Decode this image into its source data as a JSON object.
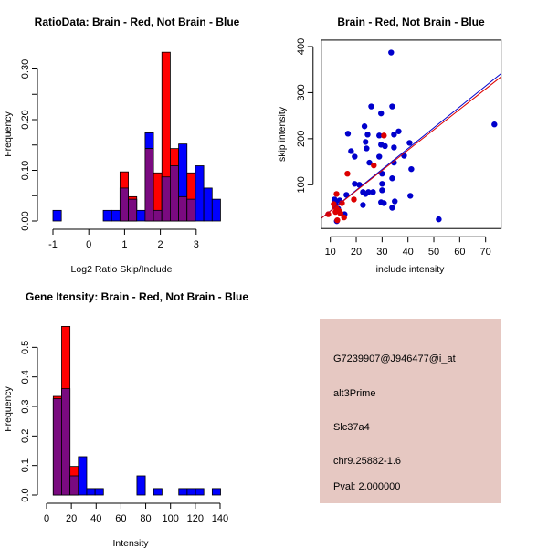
{
  "chart_data": [
    {
      "type": "bar",
      "title": "RatioData: Brain - Red, Not Brain - Blue",
      "xlabel": "Log2 Ratio Skip/Include",
      "ylabel": "Frequency",
      "xlim": [
        -1,
        3.7
      ],
      "ylim": [
        0,
        0.333
      ],
      "xticks": [
        -1,
        0,
        1,
        2,
        3
      ],
      "xtick_labels": [
        "-1",
        "0",
        "1",
        "2",
        "3"
      ],
      "yticks": [
        0,
        0.05,
        0.1,
        0.15,
        0.2,
        0.25,
        0.3
      ],
      "ytick_labels": [
        "0.00",
        "",
        "0.10",
        "",
        "0.20",
        "",
        "0.30"
      ],
      "bin_start": -1,
      "bin_width": 0.234,
      "series": [
        {
          "name": "Not Brain",
          "color": "#0000ff",
          "values": [
            0.021,
            0,
            0,
            0,
            0,
            0,
            0.021,
            0.021,
            0.065,
            0.043,
            0.021,
            0.174,
            0.021,
            0.087,
            0.109,
            0.152,
            0.043,
            0.109,
            0.065,
            0.043
          ]
        },
        {
          "name": "Brain",
          "color": "#ff0000",
          "values": [
            0,
            0,
            0,
            0,
            0,
            0,
            0,
            0,
            0.097,
            0.048,
            0,
            0.143,
            0.095,
            0.333,
            0.143,
            0.048,
            0.095,
            0,
            0,
            0
          ]
        }
      ],
      "overlap_color": "#7a0a80"
    },
    {
      "type": "scatter",
      "title": "Brain - Red, Not Brain - Blue",
      "xlabel": "include intensity",
      "ylabel": "skip intensity",
      "xlim": [
        6.5,
        76
      ],
      "ylim": [
        5,
        414
      ],
      "xticks": [
        10,
        20,
        30,
        40,
        50,
        60,
        70
      ],
      "xtick_labels": [
        "10",
        "20",
        "30",
        "40",
        "50",
        "60",
        "70"
      ],
      "yticks": [
        100,
        200,
        300,
        400
      ],
      "ytick_labels": [
        "100",
        "200",
        "300",
        "400"
      ],
      "series": [
        {
          "name": "Not Brain",
          "color": "#0000cc",
          "points": [
            [
              33.5,
              387
            ],
            [
              25.8,
              270
            ],
            [
              33.9,
              270
            ],
            [
              29.6,
              255
            ],
            [
              23.2,
              227
            ],
            [
              36.4,
              216
            ],
            [
              16.8,
              211
            ],
            [
              24.4,
              209
            ],
            [
              28.9,
              207
            ],
            [
              34.6,
              209
            ],
            [
              23.6,
              193
            ],
            [
              40.6,
              191
            ],
            [
              29.6,
              187
            ],
            [
              31.1,
              184
            ],
            [
              34.6,
              181
            ],
            [
              24.0,
              179
            ],
            [
              18.0,
              173
            ],
            [
              19.4,
              161
            ],
            [
              28.9,
              161
            ],
            [
              38.5,
              163
            ],
            [
              25.1,
              148
            ],
            [
              34.6,
              148
            ],
            [
              41.3,
              134
            ],
            [
              30,
              124
            ],
            [
              33.9,
              114
            ],
            [
              19.4,
              102
            ],
            [
              21.2,
              100
            ],
            [
              30,
              102
            ],
            [
              30,
              88
            ],
            [
              22.6,
              84
            ],
            [
              23.6,
              80
            ],
            [
              24.7,
              84
            ],
            [
              26.5,
              84
            ],
            [
              16.2,
              78
            ],
            [
              40.9,
              76
            ],
            [
              11.6,
              68
            ],
            [
              13.6,
              66
            ],
            [
              29.6,
              62
            ],
            [
              30.7,
              60
            ],
            [
              34.9,
              64
            ],
            [
              22.6,
              56
            ],
            [
              33.9,
              50
            ],
            [
              15.5,
              36
            ],
            [
              12.5,
              21
            ],
            [
              51.9,
              25
            ],
            [
              73.4,
              231
            ],
            [
              12,
              60
            ],
            [
              13,
              48
            ]
          ]
        },
        {
          "name": "Brain",
          "color": "#dd0000",
          "points": [
            [
              30.7,
              207
            ],
            [
              26.8,
              142
            ],
            [
              16.6,
              124
            ],
            [
              12.4,
              80
            ],
            [
              19.1,
              68
            ],
            [
              11.3,
              58
            ],
            [
              14.5,
              60
            ],
            [
              9.2,
              36
            ],
            [
              12.4,
              48
            ],
            [
              13.1,
              44
            ],
            [
              12,
              41
            ],
            [
              13.5,
              42
            ],
            [
              15.3,
              29
            ],
            [
              12.7,
              23
            ],
            [
              11.8,
              52
            ],
            [
              13.9,
              38
            ]
          ]
        }
      ],
      "fit_lines": [
        {
          "name": "Not Brain fit",
          "color": "#0000cc",
          "intercept": -2.1,
          "slope": 4.52
        },
        {
          "name": "Brain fit",
          "color": "#dd0000",
          "intercept": -1.5,
          "slope": 4.42
        }
      ]
    },
    {
      "type": "bar",
      "title": "Gene Itensity: Brain - Red, Not Brain - Blue",
      "xlabel": "Intensity",
      "ylabel": "Frequency",
      "xlim": [
        0,
        145
      ],
      "ylim": [
        0,
        0.571
      ],
      "xticks": [
        0,
        20,
        40,
        60,
        80,
        100,
        120,
        140
      ],
      "xtick_labels": [
        "0",
        "20",
        "40",
        "60",
        "80",
        "100",
        "120",
        "140"
      ],
      "yticks": [
        0,
        0.1,
        0.2,
        0.3,
        0.4,
        0.5
      ],
      "ytick_labels": [
        "0.0",
        "0.1",
        "0.2",
        "0.3",
        "0.4",
        "0.5"
      ],
      "bin_start": 5.4,
      "bin_width": 6.75,
      "series": [
        {
          "name": "Not Brain",
          "color": "#0000ff",
          "values": [
            0.326,
            0.36,
            0.065,
            0.13,
            0.022,
            0.022,
            0,
            0,
            0,
            0,
            0.065,
            0,
            0.022,
            0,
            0,
            0.022,
            0.022,
            0.022,
            0,
            0.022
          ]
        },
        {
          "name": "Brain",
          "color": "#ff0000",
          "values": [
            0.334,
            0.571,
            0.097,
            0,
            0,
            0,
            0,
            0,
            0,
            0,
            0,
            0,
            0,
            0,
            0,
            0,
            0,
            0,
            0,
            0
          ]
        }
      ],
      "overlap_color": "#7a0a80"
    }
  ],
  "info_panel": {
    "background": "#e6c8c2",
    "probe_id": "G7239907@J946477@i_at",
    "event_type": "alt3Prime",
    "gene": "Slc37a4",
    "location": "chr9.25882-1.6",
    "pval": "Pval: 2.000000",
    "pval_color": "#aa0000"
  }
}
